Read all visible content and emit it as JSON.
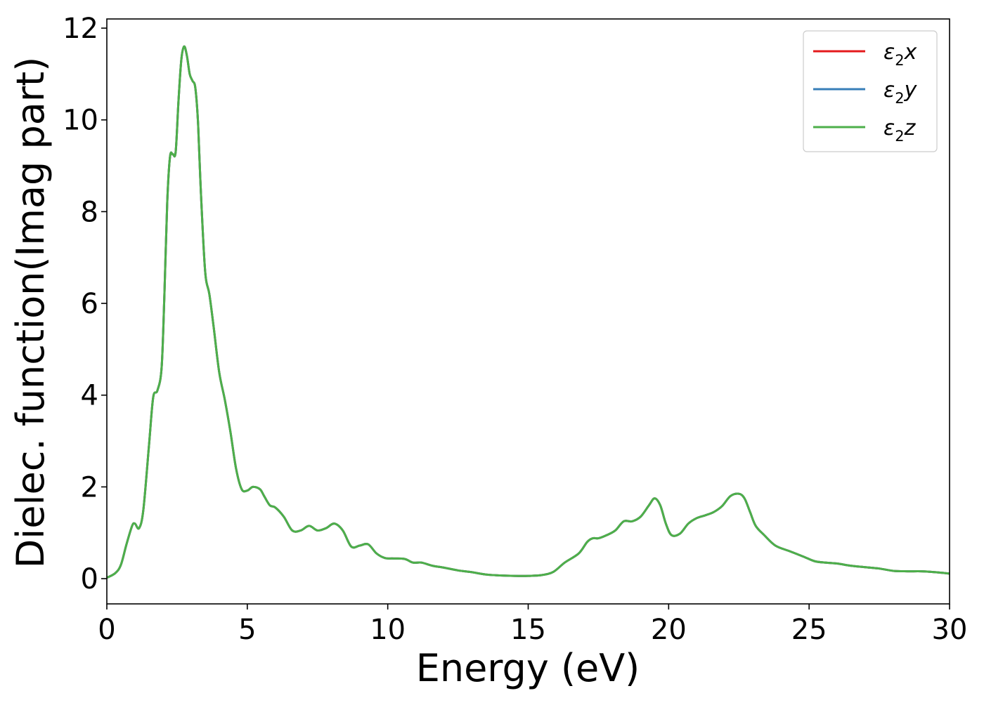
{
  "chart_data": {
    "type": "line",
    "title": "",
    "xlabel": "Energy (eV)",
    "ylabel": "Dielec. function(Imag part)",
    "xlim": [
      0,
      30
    ],
    "ylim": [
      -0.55,
      12.2
    ],
    "xticks": [
      0,
      5,
      10,
      15,
      20,
      25,
      30
    ],
    "yticks": [
      0,
      2,
      4,
      6,
      8,
      10,
      12
    ],
    "grid": false,
    "legend_position": "top-right",
    "series": [
      {
        "name_parts": [
          "ε",
          "2",
          "x"
        ],
        "color": "#e41a1c",
        "x": [
          0,
          0.3,
          0.5,
          0.7,
          0.9,
          1.0,
          1.15,
          1.3,
          1.5,
          1.65,
          1.8,
          1.95,
          2.05,
          2.15,
          2.25,
          2.35,
          2.45,
          2.55,
          2.65,
          2.75,
          2.85,
          2.95,
          3.05,
          3.15,
          3.25,
          3.35,
          3.5,
          3.65,
          3.8,
          4.0,
          4.2,
          4.4,
          4.6,
          4.8,
          5.0,
          5.2,
          5.45,
          5.6,
          5.8,
          6.0,
          6.3,
          6.6,
          6.9,
          7.2,
          7.5,
          7.8,
          8.1,
          8.4,
          8.7,
          9.0,
          9.3,
          9.6,
          9.9,
          10.2,
          10.6,
          10.9,
          11.2,
          11.6,
          12.0,
          12.5,
          13.0,
          13.5,
          14.0,
          14.5,
          15.0,
          15.5,
          15.9,
          16.3,
          16.8,
          17.1,
          17.3,
          17.5,
          17.8,
          18.1,
          18.4,
          18.7,
          19.0,
          19.3,
          19.5,
          19.7,
          19.9,
          20.1,
          20.4,
          20.7,
          21.0,
          21.3,
          21.6,
          21.9,
          22.2,
          22.5,
          22.7,
          22.9,
          23.1,
          23.4,
          23.8,
          24.3,
          24.8,
          25.2,
          25.6,
          26.0,
          26.5,
          27.0,
          27.5,
          28.0,
          28.5,
          29.0,
          29.5,
          30.0
        ],
        "values": [
          0.02,
          0.12,
          0.3,
          0.75,
          1.15,
          1.2,
          1.1,
          1.5,
          2.9,
          3.95,
          4.1,
          4.6,
          6.2,
          8.2,
          9.2,
          9.25,
          9.3,
          10.4,
          11.3,
          11.6,
          11.4,
          11.0,
          10.85,
          10.7,
          9.9,
          8.4,
          6.7,
          6.2,
          5.5,
          4.5,
          3.9,
          3.2,
          2.4,
          1.95,
          1.92,
          2.0,
          1.95,
          1.8,
          1.6,
          1.55,
          1.35,
          1.05,
          1.05,
          1.15,
          1.05,
          1.1,
          1.2,
          1.05,
          0.7,
          0.72,
          0.75,
          0.55,
          0.45,
          0.44,
          0.43,
          0.35,
          0.35,
          0.28,
          0.24,
          0.18,
          0.14,
          0.09,
          0.07,
          0.06,
          0.06,
          0.08,
          0.15,
          0.35,
          0.55,
          0.8,
          0.88,
          0.88,
          0.95,
          1.05,
          1.25,
          1.25,
          1.35,
          1.6,
          1.75,
          1.6,
          1.2,
          0.95,
          0.98,
          1.2,
          1.32,
          1.38,
          1.45,
          1.58,
          1.8,
          1.85,
          1.75,
          1.45,
          1.15,
          0.95,
          0.72,
          0.6,
          0.48,
          0.38,
          0.35,
          0.33,
          0.28,
          0.25,
          0.22,
          0.17,
          0.16,
          0.16,
          0.14,
          0.11
        ]
      },
      {
        "name_parts": [
          "ε",
          "2",
          "y"
        ],
        "color": "#377eb8",
        "x": [
          0,
          0.3,
          0.5,
          0.7,
          0.9,
          1.0,
          1.15,
          1.3,
          1.5,
          1.65,
          1.8,
          1.95,
          2.05,
          2.15,
          2.25,
          2.35,
          2.45,
          2.55,
          2.65,
          2.75,
          2.85,
          2.95,
          3.05,
          3.15,
          3.25,
          3.35,
          3.5,
          3.65,
          3.8,
          4.0,
          4.2,
          4.4,
          4.6,
          4.8,
          5.0,
          5.2,
          5.45,
          5.6,
          5.8,
          6.0,
          6.3,
          6.6,
          6.9,
          7.2,
          7.5,
          7.8,
          8.1,
          8.4,
          8.7,
          9.0,
          9.3,
          9.6,
          9.9,
          10.2,
          10.6,
          10.9,
          11.2,
          11.6,
          12.0,
          12.5,
          13.0,
          13.5,
          14.0,
          14.5,
          15.0,
          15.5,
          15.9,
          16.3,
          16.8,
          17.1,
          17.3,
          17.5,
          17.8,
          18.1,
          18.4,
          18.7,
          19.0,
          19.3,
          19.5,
          19.7,
          19.9,
          20.1,
          20.4,
          20.7,
          21.0,
          21.3,
          21.6,
          21.9,
          22.2,
          22.5,
          22.7,
          22.9,
          23.1,
          23.4,
          23.8,
          24.3,
          24.8,
          25.2,
          25.6,
          26.0,
          26.5,
          27.0,
          27.5,
          28.0,
          28.5,
          29.0,
          29.5,
          30.0
        ],
        "values": [
          0.02,
          0.12,
          0.3,
          0.75,
          1.15,
          1.2,
          1.1,
          1.5,
          2.9,
          3.95,
          4.1,
          4.6,
          6.2,
          8.2,
          9.2,
          9.25,
          9.3,
          10.4,
          11.3,
          11.6,
          11.4,
          11.0,
          10.85,
          10.7,
          9.9,
          8.4,
          6.7,
          6.2,
          5.5,
          4.5,
          3.9,
          3.2,
          2.4,
          1.95,
          1.92,
          2.0,
          1.95,
          1.8,
          1.6,
          1.55,
          1.35,
          1.05,
          1.05,
          1.15,
          1.05,
          1.1,
          1.2,
          1.05,
          0.7,
          0.72,
          0.75,
          0.55,
          0.45,
          0.44,
          0.43,
          0.35,
          0.35,
          0.28,
          0.24,
          0.18,
          0.14,
          0.09,
          0.07,
          0.06,
          0.06,
          0.08,
          0.15,
          0.35,
          0.55,
          0.8,
          0.88,
          0.88,
          0.95,
          1.05,
          1.25,
          1.25,
          1.35,
          1.6,
          1.75,
          1.6,
          1.2,
          0.95,
          0.98,
          1.2,
          1.32,
          1.38,
          1.45,
          1.58,
          1.8,
          1.85,
          1.75,
          1.45,
          1.15,
          0.95,
          0.72,
          0.6,
          0.48,
          0.38,
          0.35,
          0.33,
          0.28,
          0.25,
          0.22,
          0.17,
          0.16,
          0.16,
          0.14,
          0.11
        ]
      },
      {
        "name_parts": [
          "ε",
          "2",
          "z"
        ],
        "color": "#4daf4a",
        "x": [
          0,
          0.3,
          0.5,
          0.7,
          0.9,
          1.0,
          1.15,
          1.3,
          1.5,
          1.65,
          1.8,
          1.95,
          2.05,
          2.15,
          2.25,
          2.35,
          2.45,
          2.55,
          2.65,
          2.75,
          2.85,
          2.95,
          3.05,
          3.15,
          3.25,
          3.35,
          3.5,
          3.65,
          3.8,
          4.0,
          4.2,
          4.4,
          4.6,
          4.8,
          5.0,
          5.2,
          5.45,
          5.6,
          5.8,
          6.0,
          6.3,
          6.6,
          6.9,
          7.2,
          7.5,
          7.8,
          8.1,
          8.4,
          8.7,
          9.0,
          9.3,
          9.6,
          9.9,
          10.2,
          10.6,
          10.9,
          11.2,
          11.6,
          12.0,
          12.5,
          13.0,
          13.5,
          14.0,
          14.5,
          15.0,
          15.5,
          15.9,
          16.3,
          16.8,
          17.1,
          17.3,
          17.5,
          17.8,
          18.1,
          18.4,
          18.7,
          19.0,
          19.3,
          19.5,
          19.7,
          19.9,
          20.1,
          20.4,
          20.7,
          21.0,
          21.3,
          21.6,
          21.9,
          22.2,
          22.5,
          22.7,
          22.9,
          23.1,
          23.4,
          23.8,
          24.3,
          24.8,
          25.2,
          25.6,
          26.0,
          26.5,
          27.0,
          27.5,
          28.0,
          28.5,
          29.0,
          29.5,
          30.0
        ],
        "values": [
          0.02,
          0.12,
          0.3,
          0.75,
          1.15,
          1.2,
          1.1,
          1.5,
          2.9,
          3.95,
          4.1,
          4.6,
          6.2,
          8.2,
          9.2,
          9.25,
          9.3,
          10.4,
          11.3,
          11.6,
          11.4,
          11.0,
          10.85,
          10.7,
          9.9,
          8.4,
          6.7,
          6.2,
          5.5,
          4.5,
          3.9,
          3.2,
          2.4,
          1.95,
          1.92,
          2.0,
          1.95,
          1.8,
          1.6,
          1.55,
          1.35,
          1.05,
          1.05,
          1.15,
          1.05,
          1.1,
          1.2,
          1.05,
          0.7,
          0.72,
          0.75,
          0.55,
          0.45,
          0.44,
          0.43,
          0.35,
          0.35,
          0.28,
          0.24,
          0.18,
          0.14,
          0.09,
          0.07,
          0.06,
          0.06,
          0.08,
          0.15,
          0.35,
          0.55,
          0.8,
          0.88,
          0.88,
          0.95,
          1.05,
          1.25,
          1.25,
          1.35,
          1.6,
          1.75,
          1.6,
          1.2,
          0.95,
          0.98,
          1.2,
          1.32,
          1.38,
          1.45,
          1.58,
          1.8,
          1.85,
          1.75,
          1.45,
          1.15,
          0.95,
          0.72,
          0.6,
          0.48,
          0.38,
          0.35,
          0.33,
          0.28,
          0.25,
          0.22,
          0.17,
          0.16,
          0.16,
          0.14,
          0.11
        ]
      }
    ]
  }
}
